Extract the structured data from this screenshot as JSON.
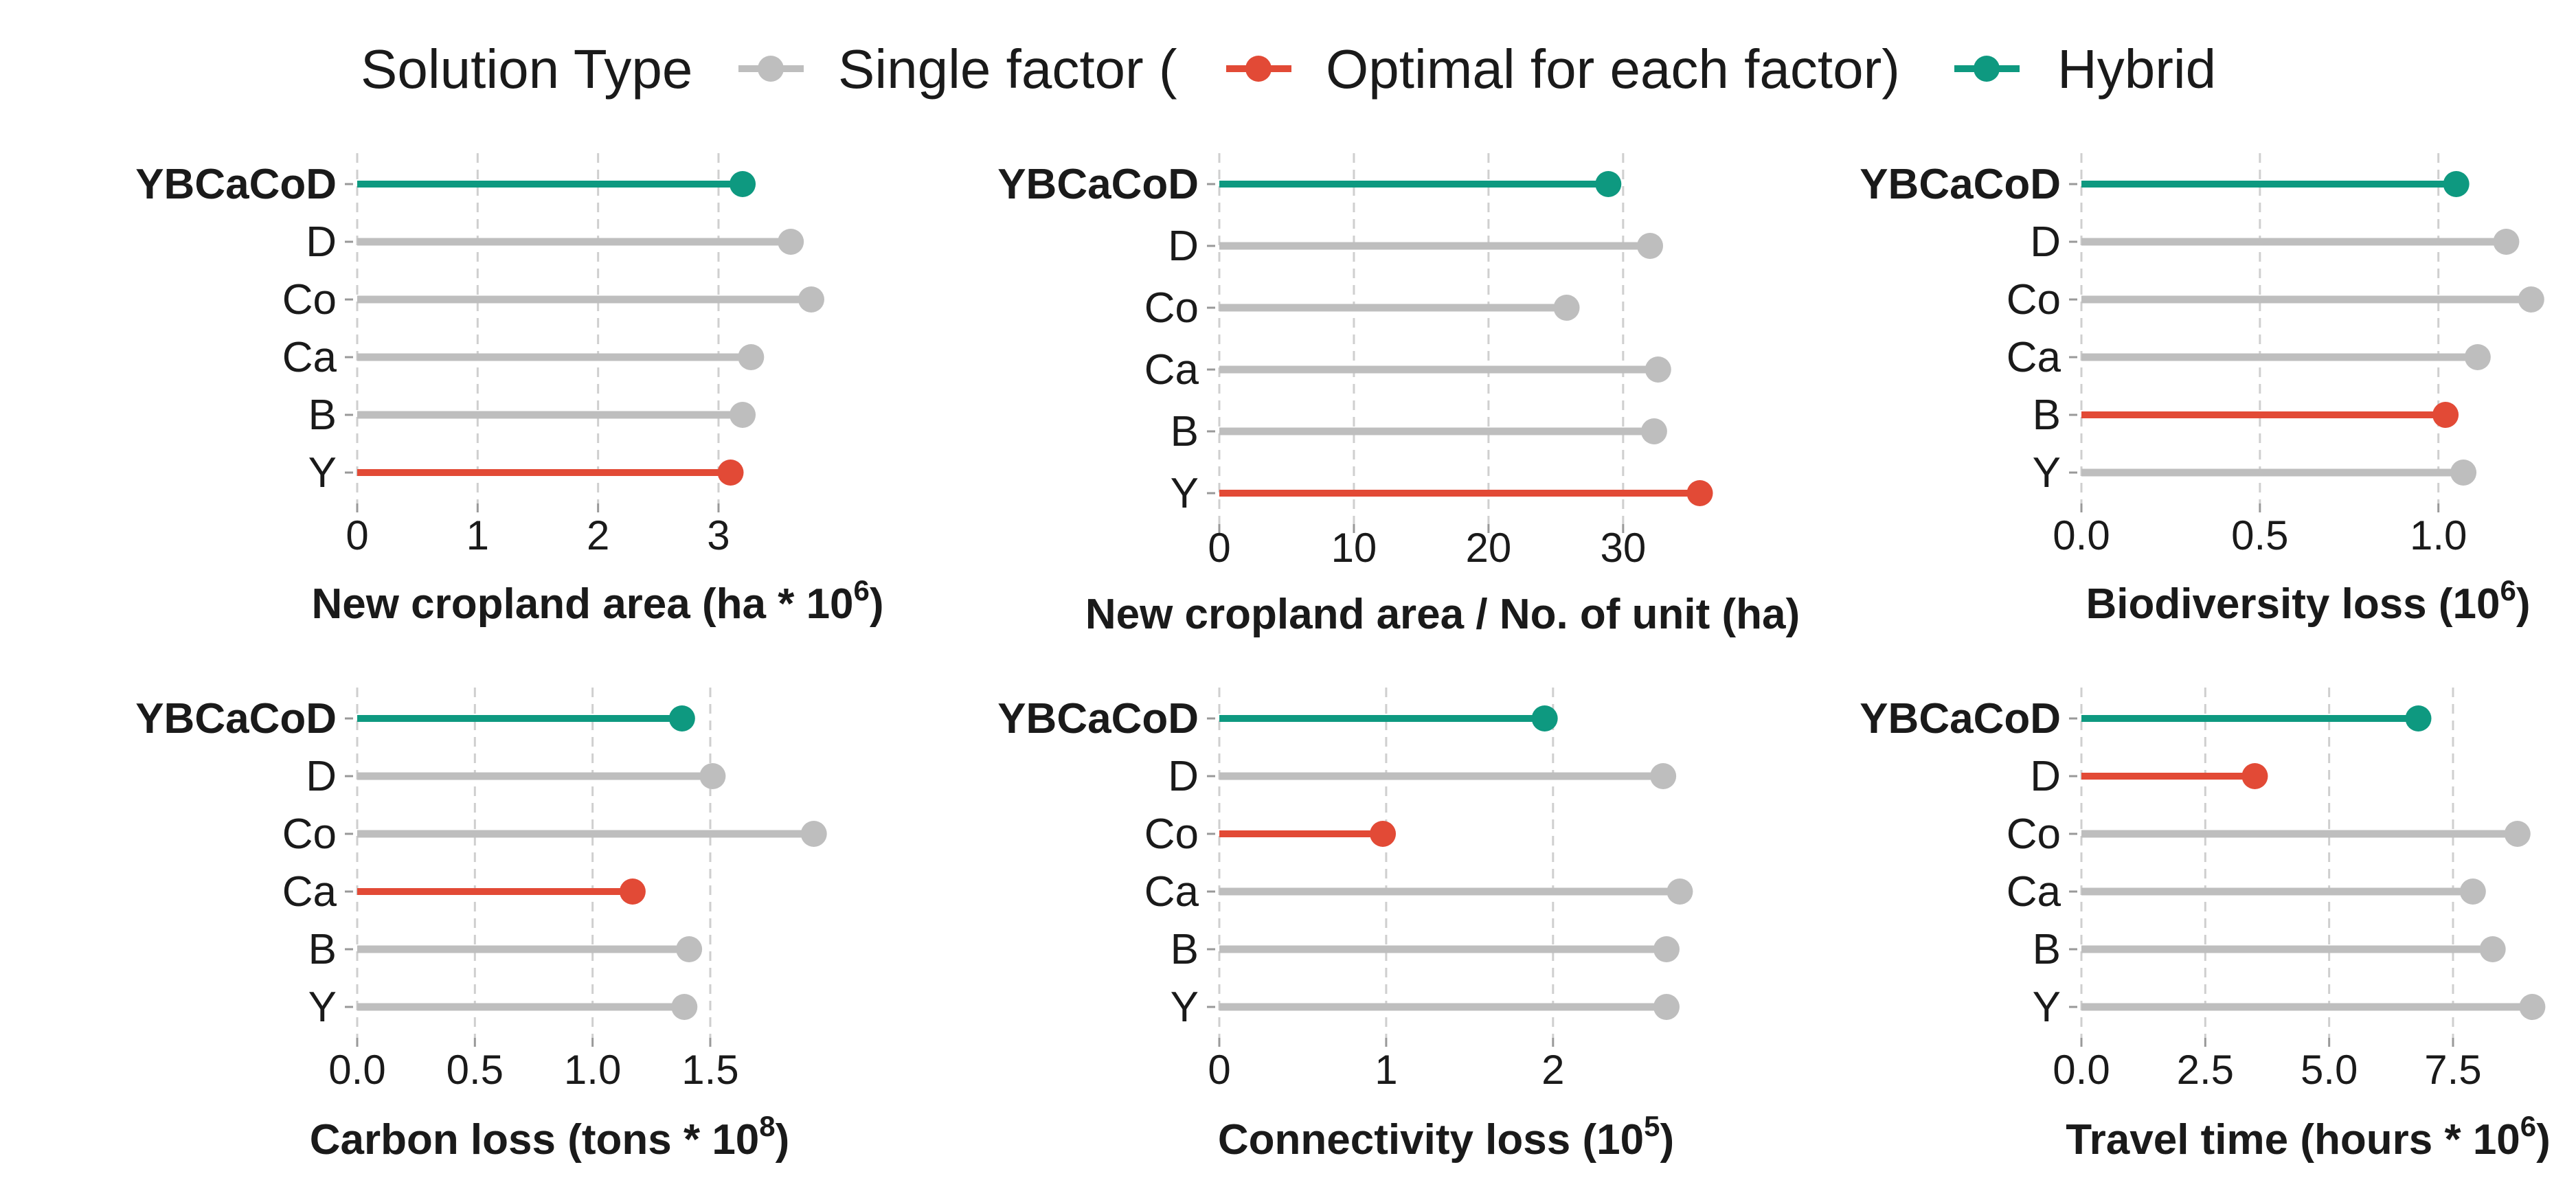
{
  "legend": {
    "title": "Solution Type",
    "items": [
      {
        "label": "Single factor (",
        "color": "#BEBEBE"
      },
      {
        "label": "Optimal for each factor)",
        "color": "#E24A36"
      },
      {
        "label": "Hybrid",
        "color": "#0E9980"
      }
    ]
  },
  "chart_data": [
    {
      "type": "lollipop",
      "orientation": "horizontal",
      "xlabel": "New cropland area (ha * 10",
      "xlabel_superscript": "6",
      "xlabel_suffix": ")",
      "categories": [
        "YBCaCoD",
        "D",
        "Co",
        "Ca",
        "B",
        "Y"
      ],
      "values": [
        3.2,
        3.6,
        3.77,
        3.27,
        3.2,
        3.1
      ],
      "solution_types": [
        "Hybrid",
        "Single factor",
        "Single factor",
        "Single factor",
        "Single factor",
        "Optimal"
      ],
      "xlim": [
        0,
        3.85
      ],
      "xticks": [
        0,
        1,
        2,
        3
      ],
      "xtick_labels": [
        "0",
        "1",
        "2",
        "3"
      ],
      "grid": true
    },
    {
      "type": "lollipop",
      "orientation": "horizontal",
      "xlabel": "New cropland area / No. of unit (ha)",
      "xlabel_superscript": "",
      "xlabel_suffix": "",
      "categories": [
        "YBCaCoD",
        "D",
        "Co",
        "Ca",
        "B",
        "Y"
      ],
      "values": [
        28.9,
        32.0,
        25.8,
        32.6,
        32.3,
        35.7
      ],
      "solution_types": [
        "Hybrid",
        "Single factor",
        "Single factor",
        "Single factor",
        "Single factor",
        "Optimal"
      ],
      "xlim": [
        0,
        37
      ],
      "xticks": [
        0,
        10,
        20,
        30
      ],
      "xtick_labels": [
        "0",
        "10",
        "20",
        "30"
      ],
      "grid": true
    },
    {
      "type": "lollipop",
      "orientation": "horizontal",
      "xlabel": "Biodiversity loss (10",
      "xlabel_superscript": "6",
      "xlabel_suffix": ")",
      "categories": [
        "YBCaCoD",
        "D",
        "Co",
        "Ca",
        "B",
        "Y"
      ],
      "values": [
        1.05,
        1.19,
        1.26,
        1.11,
        1.02,
        1.07
      ],
      "solution_types": [
        "Hybrid",
        "Single factor",
        "Single factor",
        "Single factor",
        "Optimal",
        "Single factor"
      ],
      "xlim": [
        0,
        1.27
      ],
      "xticks": [
        0,
        0.5,
        1.0
      ],
      "xtick_labels": [
        "0.0",
        "0.5",
        "1.0"
      ],
      "grid": true
    },
    {
      "type": "lollipop",
      "orientation": "horizontal",
      "xlabel": "Carbon loss (tons * 10",
      "xlabel_superscript": "8",
      "xlabel_suffix": ")",
      "categories": [
        "YBCaCoD",
        "D",
        "Co",
        "Ca",
        "B",
        "Y"
      ],
      "values": [
        1.38,
        1.51,
        1.94,
        1.17,
        1.41,
        1.39
      ],
      "solution_types": [
        "Hybrid",
        "Single factor",
        "Single factor",
        "Optimal",
        "Single factor",
        "Single factor"
      ],
      "xlim": [
        0,
        1.97
      ],
      "xticks": [
        0,
        0.5,
        1.0,
        1.5
      ],
      "xtick_labels": [
        "0.0",
        "0.5",
        "1.0",
        "1.5"
      ],
      "grid": true
    },
    {
      "type": "lollipop",
      "orientation": "horizontal",
      "xlabel": "Connectivity loss (10",
      "xlabel_superscript": "5",
      "xlabel_suffix": ")",
      "categories": [
        "YBCaCoD",
        "D",
        "Co",
        "Ca",
        "B",
        "Y"
      ],
      "values": [
        1.95,
        2.66,
        0.98,
        2.76,
        2.68,
        2.68
      ],
      "solution_types": [
        "Hybrid",
        "Single factor",
        "Optimal",
        "Single factor",
        "Single factor",
        "Single factor"
      ],
      "xlim": [
        0,
        2.82
      ],
      "xticks": [
        0,
        1,
        2
      ],
      "xtick_labels": [
        "0",
        "1",
        "2"
      ],
      "grid": true
    },
    {
      "type": "lollipop",
      "orientation": "horizontal",
      "xlabel": "Travel time (hours * 10",
      "xlabel_superscript": "6",
      "xlabel_suffix": ")",
      "categories": [
        "YBCaCoD",
        "D",
        "Co",
        "Ca",
        "B",
        "Y"
      ],
      "values": [
        6.8,
        3.5,
        8.8,
        7.9,
        8.3,
        9.1
      ],
      "solution_types": [
        "Hybrid",
        "Optimal",
        "Single factor",
        "Single factor",
        "Single factor",
        "Single factor"
      ],
      "xlim": [
        0,
        9.15
      ],
      "xticks": [
        0,
        2.5,
        5.0,
        7.5
      ],
      "xtick_labels": [
        "0.0",
        "2.5",
        "5.0",
        "7.5"
      ],
      "grid": true
    }
  ]
}
